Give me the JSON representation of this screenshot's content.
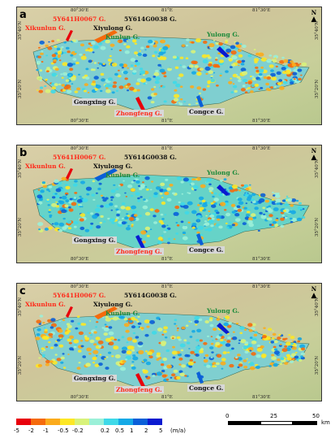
{
  "panels": [
    {
      "letter": "a",
      "labels": {
        "sy641": "5Y641H0067 G.",
        "xikunlun": "Xikunlun G.",
        "xiyulong": "Xiyulong G.",
        "sy614": "5Y614G0038 G.",
        "kunlun": "Kunlun G.",
        "yulong": "Yulong G.",
        "gongxing": "Gongxing G.",
        "zhongfeng": "Zhongfeng G.",
        "congce": "Congce G."
      }
    },
    {
      "letter": "b",
      "labels": {
        "sy641": "5Y641H0067 G.",
        "xikunlun": "Xikunlun G.",
        "xiyulong": "Xiyulong G.",
        "sy614": "5Y614G0038 G.",
        "kunlun": "Kunlun G.",
        "yulong": "Yulong G.",
        "gongxing": "Gongxing G.",
        "zhongfeng": "Zhongfeng G.",
        "congce": "Congce G."
      }
    },
    {
      "letter": "c",
      "labels": {
        "sy641": "5Y641H0067 G.",
        "xikunlun": "Xikunlun G.",
        "xiyulong": "Xiyulong G.",
        "sy614": "5Y614G0038 G.",
        "kunlun": "Kunlun G.",
        "yulong": "Yulong G.",
        "gongxing": "Gongxing G.",
        "zhongfeng": "Zhongfeng G.",
        "congce": "Congce G."
      }
    }
  ],
  "north_label": "N",
  "lon_ticks": [
    "80°30'E",
    "81°E",
    "81°30'E"
  ],
  "lat_ticks": [
    "35°40'N",
    "35°20'N"
  ],
  "legend": {
    "classes": [
      {
        "color": "#e8000b"
      },
      {
        "color": "#f56a0c"
      },
      {
        "color": "#fbab1c"
      },
      {
        "color": "#fde725"
      },
      {
        "color": "#d8f27a"
      },
      {
        "color": "#9bf0d8"
      },
      {
        "color": "#3ed9e8"
      },
      {
        "color": "#14a9e6"
      },
      {
        "color": "#0a5fd8"
      },
      {
        "color": "#0a1ad0"
      }
    ],
    "tick_labels": [
      "-5",
      "-2",
      "-1",
      "-0.5",
      "-0.2",
      "0.2",
      "0.5",
      "1",
      "2",
      "5"
    ],
    "unit": "(m/a)"
  },
  "scale_bar": {
    "labels": [
      "0",
      "25",
      "50"
    ],
    "unit": "km"
  }
}
